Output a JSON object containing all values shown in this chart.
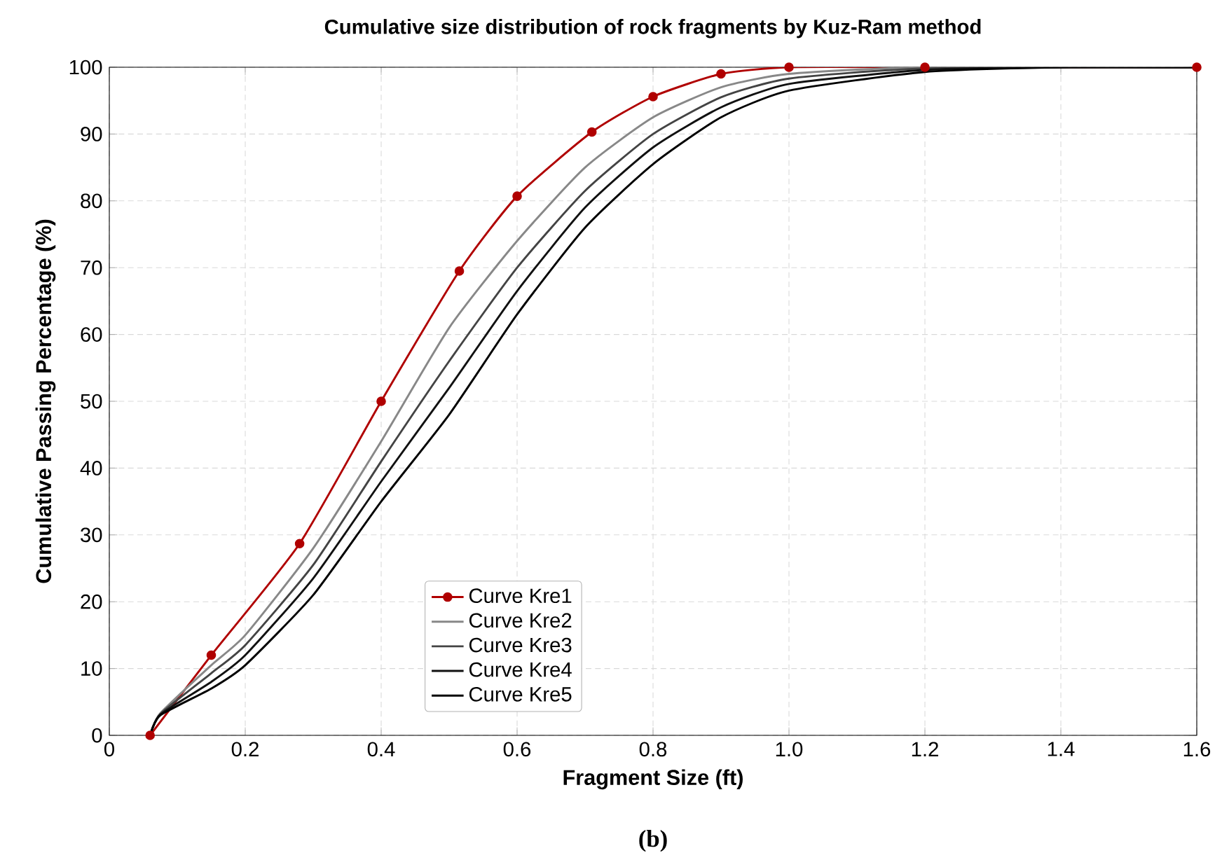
{
  "chart_data": {
    "type": "line",
    "title": "Cumulative size distribution of rock fragments by Kuz-Ram method",
    "xlabel": "Fragment Size (ft)",
    "ylabel": "Cumulative Passing Percentage (%)",
    "annotations": [
      "(b)"
    ],
    "xlim": [
      0,
      1.6
    ],
    "ylim": [
      0,
      100
    ],
    "xticks": [
      0,
      0.2,
      0.4,
      0.6,
      0.8,
      {
        "value": 1.0,
        "label": "1.0"
      },
      1.2,
      1.4,
      1.6
    ],
    "yticks": [
      0,
      10,
      20,
      30,
      40,
      50,
      60,
      70,
      80,
      90,
      100
    ],
    "grid": true,
    "legend": "bottom",
    "line_style": "solid",
    "series": [
      {
        "name": "Curve Kre1",
        "color": "#b00000",
        "marker": "circle",
        "x": [
          0.06,
          0.15,
          0.28,
          0.4,
          0.515,
          0.6,
          0.71,
          0.8,
          0.9,
          1.0,
          1.2,
          1.6
        ],
        "values": [
          0,
          12,
          28.7,
          50,
          69.5,
          80.7,
          90.3,
          95.6,
          99,
          100,
          100,
          100
        ]
      },
      {
        "name": "Curve Kre2",
        "color": "#888888",
        "marker": "none",
        "x": [
          0.06,
          0.075,
          0.15,
          0.2,
          0.3,
          0.4,
          0.5,
          0.6,
          0.7,
          0.8,
          0.9,
          1.0,
          1.2,
          1.6
        ],
        "values": [
          0,
          3.3,
          10.5,
          15,
          28,
          44,
          61,
          74,
          85,
          92.5,
          97,
          99,
          100,
          100
        ]
      },
      {
        "name": "Curve Kre3",
        "color": "#444444",
        "marker": "none",
        "x": [
          0.06,
          0.075,
          0.15,
          0.2,
          0.3,
          0.4,
          0.5,
          0.6,
          0.7,
          0.8,
          0.9,
          1.0,
          1.2,
          1.6
        ],
        "values": [
          0,
          3.2,
          9.3,
          13.5,
          25.5,
          41,
          56,
          70,
          81.5,
          90,
          95.5,
          98.3,
          99.8,
          100
        ]
      },
      {
        "name": "Curve Kre4",
        "color": "#111111",
        "marker": "none",
        "x": [
          0.06,
          0.075,
          0.15,
          0.2,
          0.3,
          0.4,
          0.5,
          0.6,
          0.7,
          0.8,
          0.9,
          1.0,
          1.2,
          1.4,
          1.6
        ],
        "values": [
          0,
          3.1,
          8,
          12,
          23.5,
          38,
          52,
          66.5,
          79,
          88,
          94,
          97.5,
          99.6,
          100,
          100
        ]
      },
      {
        "name": "Curve Kre5",
        "color": "#000000",
        "marker": "none",
        "x": [
          0.06,
          0.075,
          0.15,
          0.2,
          0.3,
          0.4,
          0.5,
          0.6,
          0.7,
          0.8,
          0.9,
          1.0,
          1.2,
          1.4,
          1.6
        ],
        "values": [
          0,
          3,
          7,
          10.5,
          21,
          35,
          48,
          63,
          76,
          85.5,
          92.5,
          96.5,
          99.3,
          100,
          100
        ]
      }
    ]
  }
}
